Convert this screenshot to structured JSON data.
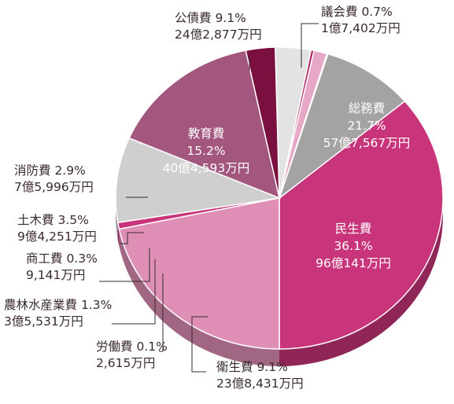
{
  "chart_data": {
    "type": "pie",
    "title": "",
    "slices": [
      {
        "name": "民生費",
        "percent_label": "36.1%",
        "amount_label": "96億141万円",
        "value": 36.1,
        "color": "#c8357a"
      },
      {
        "name": "衛生費",
        "percent_label": "9.1%",
        "amount_label": "23億8,431万円",
        "value": 9.1,
        "color": "#a4a2a3"
      },
      {
        "name": "労働費",
        "percent_label": "0.1%",
        "amount_label": "2,615万円",
        "value": 0.1,
        "color": "#cfcfcf"
      },
      {
        "name": "農林水産業費",
        "percent_label": "1.3%",
        "amount_label": "3億5,531万円",
        "value": 1.3,
        "color": "#e6a8c6"
      },
      {
        "name": "商工費",
        "percent_label": "0.3%",
        "amount_label": "9,141万円",
        "value": 0.3,
        "color": "#b0245f"
      },
      {
        "name": "土木費",
        "percent_label": "3.5%",
        "amount_label": "9億4,251万円",
        "value": 3.5,
        "color": "#e3e3e3"
      },
      {
        "name": "消防費",
        "percent_label": "2.9%",
        "amount_label": "7億5,996万円",
        "value": 2.9,
        "color": "#7a1040"
      },
      {
        "name": "教育費",
        "percent_label": "15.2%",
        "amount_label": "40億4,593万円",
        "value": 15.2,
        "color": "#a3567e"
      },
      {
        "name": "公債費",
        "percent_label": "9.1%",
        "amount_label": "24億2,877万円",
        "value": 9.1,
        "color": "#cfcfcf"
      },
      {
        "name": "議会費",
        "percent_label": "0.7%",
        "amount_label": "1億7,402万円",
        "value": 0.7,
        "color": "#c8357a"
      },
      {
        "name": "総務費",
        "percent_label": "21.7%",
        "amount_label": "57億7,567万円",
        "value": 21.7,
        "color": "#df8fb5"
      }
    ]
  }
}
